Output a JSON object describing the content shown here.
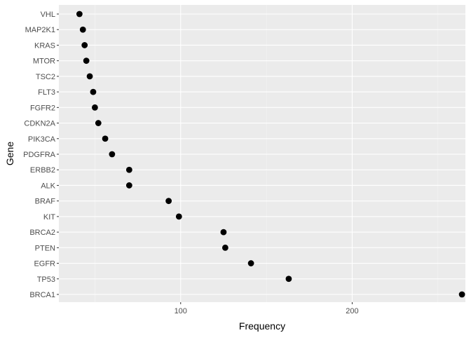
{
  "chart_data": {
    "type": "scatter",
    "title": "",
    "xlabel": "Frequency",
    "ylabel": "Gene",
    "xlim": [
      29,
      266
    ],
    "x_ticks": [
      100,
      200
    ],
    "x_minor_ticks": [
      50,
      150,
      250
    ],
    "grid": true,
    "categories": [
      "BRCA1",
      "TP53",
      "EGFR",
      "PTEN",
      "BRCA2",
      "KIT",
      "BRAF",
      "ALK",
      "ERBB2",
      "PDGFRA",
      "PIK3CA",
      "CDKN2A",
      "FGFR2",
      "FLT3",
      "TSC2",
      "MTOR",
      "KRAS",
      "MAP2K1",
      "VHL"
    ],
    "values": [
      264,
      163,
      141,
      126,
      125,
      99,
      93,
      70,
      70,
      60,
      56,
      52,
      50,
      49,
      47,
      45,
      44,
      43,
      41
    ],
    "colors": {
      "panel": "#EBEBEB",
      "grid_major": "#FFFFFF",
      "grid_minor": "#F5F5F5",
      "point": "#000000"
    }
  }
}
